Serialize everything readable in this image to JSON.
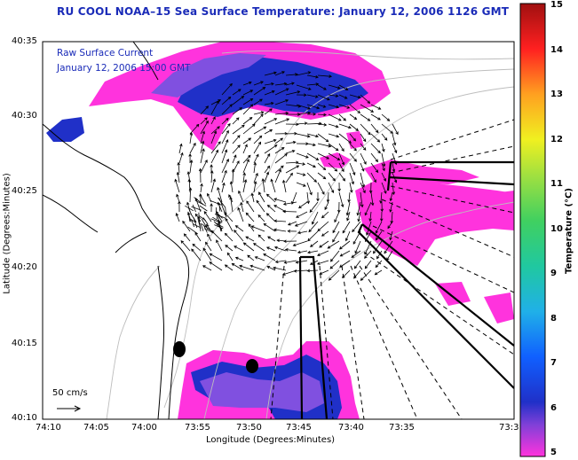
{
  "title": "RU COOL  NOAA–15  Sea Surface Temperature:  January 12, 2006 1126 GMT",
  "overlay": {
    "line1": "Raw Surface Current",
    "line2": "January 12, 2006 15:00 GMT"
  },
  "axes": {
    "xlabel": "Longitude (Degrees:Minutes)",
    "ylabel": "Latitude (Degrees:Minutes)",
    "x_ticks": [
      "74:10",
      "74:05",
      "74:00",
      "73:55",
      "73:50",
      "73:45",
      "73:40",
      "73:35",
      "73:3"
    ],
    "y_ticks": [
      "40:35",
      "40:30",
      "40:25",
      "40:20",
      "40:15",
      "40:10"
    ]
  },
  "colorbar": {
    "label": "Temperature (°C)",
    "ticks": [
      "15",
      "14",
      "13",
      "12",
      "11",
      "10",
      "9",
      "8",
      "7",
      "6",
      "5"
    ],
    "min": 5,
    "max": 15
  },
  "scale": {
    "label": "50 cm/s"
  },
  "colors": {
    "title": "#1a2bb8",
    "sst_warm": "#ff33cc",
    "sst_cool": "#2030c8",
    "sst_mid": "#8050e0"
  }
}
